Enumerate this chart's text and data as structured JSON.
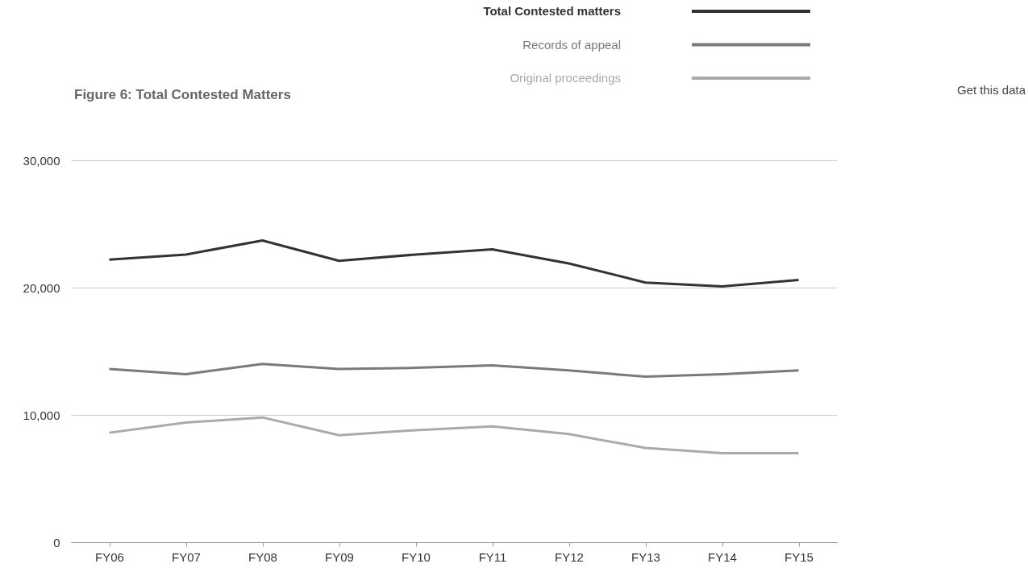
{
  "chart_data": {
    "type": "line",
    "title": "Figure 6: Total Contested Matters",
    "categories": [
      "FY06",
      "FY07",
      "FY08",
      "FY09",
      "FY10",
      "FY11",
      "FY12",
      "FY13",
      "FY14",
      "FY15"
    ],
    "series": [
      {
        "name": "Total Contested matters",
        "color": "#333333",
        "values": [
          22200,
          22600,
          23700,
          22100,
          22600,
          23000,
          21900,
          20400,
          20100,
          20600
        ]
      },
      {
        "name": "Records of appeal",
        "color": "#7a7a7a",
        "values": [
          13600,
          13200,
          14000,
          13600,
          13700,
          13900,
          13500,
          13000,
          13200,
          13500
        ]
      },
      {
        "name": "Original proceedings",
        "color": "#aaaaaa",
        "values": [
          8600,
          9400,
          9800,
          8400,
          8800,
          9100,
          8500,
          7400,
          7000,
          7000
        ]
      }
    ],
    "ylim": [
      0,
      30000
    ],
    "yticks": [
      {
        "value": 0,
        "label": "0"
      },
      {
        "value": 10000,
        "label": "10,000"
      },
      {
        "value": 20000,
        "label": "20,000"
      },
      {
        "value": 30000,
        "label": "30,000"
      }
    ],
    "grid": "y",
    "legend": "top",
    "marker": "none",
    "line_style": "solid",
    "annotations": [
      "Get this data"
    ]
  }
}
